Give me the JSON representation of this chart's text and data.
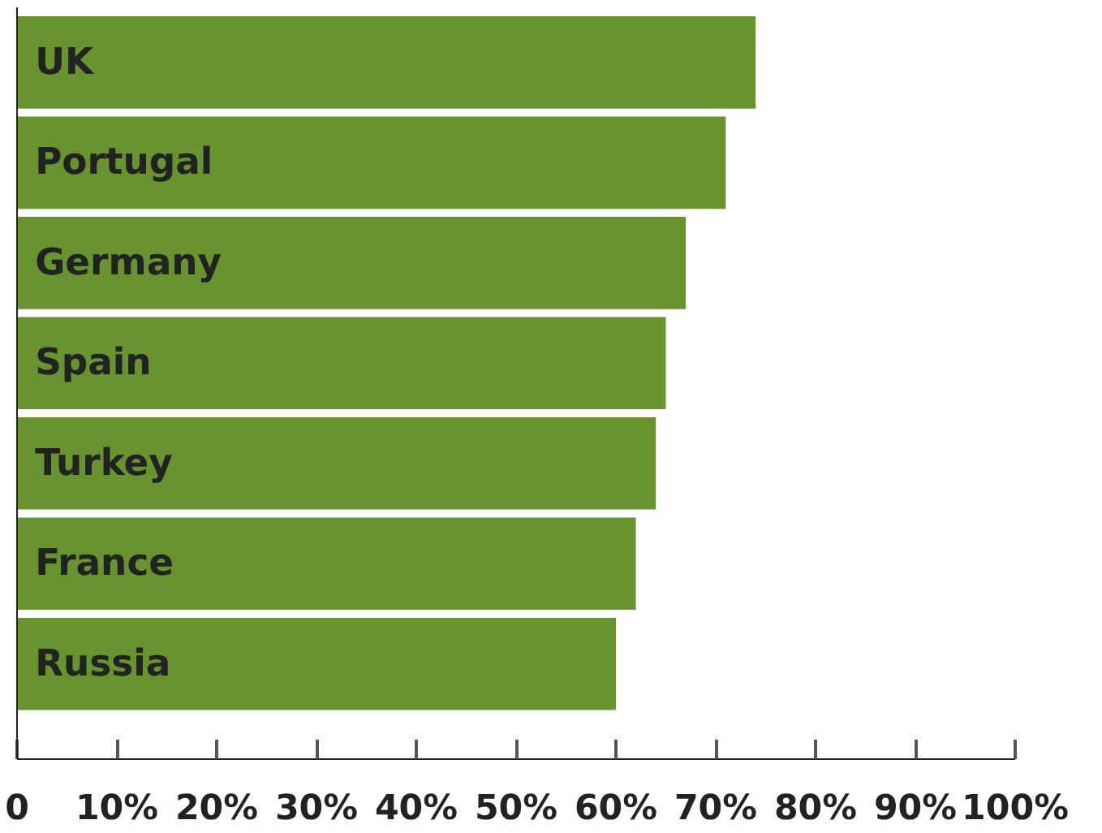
{
  "chart_data": {
    "type": "bar",
    "orientation": "horizontal",
    "categories": [
      "UK",
      "Portugal",
      "Germany",
      "Spain",
      "Turkey",
      "France",
      "Russia"
    ],
    "values": [
      74,
      71,
      67,
      65,
      64,
      62,
      60
    ],
    "color": "#67942e",
    "xlim": [
      0,
      100
    ],
    "xticks": [
      {
        "value": 0,
        "label": "0"
      },
      {
        "value": 10,
        "label": "10%"
      },
      {
        "value": 20,
        "label": "20%"
      },
      {
        "value": 30,
        "label": "30%"
      },
      {
        "value": 40,
        "label": "40%"
      },
      {
        "value": 50,
        "label": "50%"
      },
      {
        "value": 60,
        "label": "60%"
      },
      {
        "value": 70,
        "label": "70%"
      },
      {
        "value": 80,
        "label": "80%"
      },
      {
        "value": 90,
        "label": "90%"
      },
      {
        "value": 100,
        "label": "100%"
      }
    ],
    "grid": false
  }
}
